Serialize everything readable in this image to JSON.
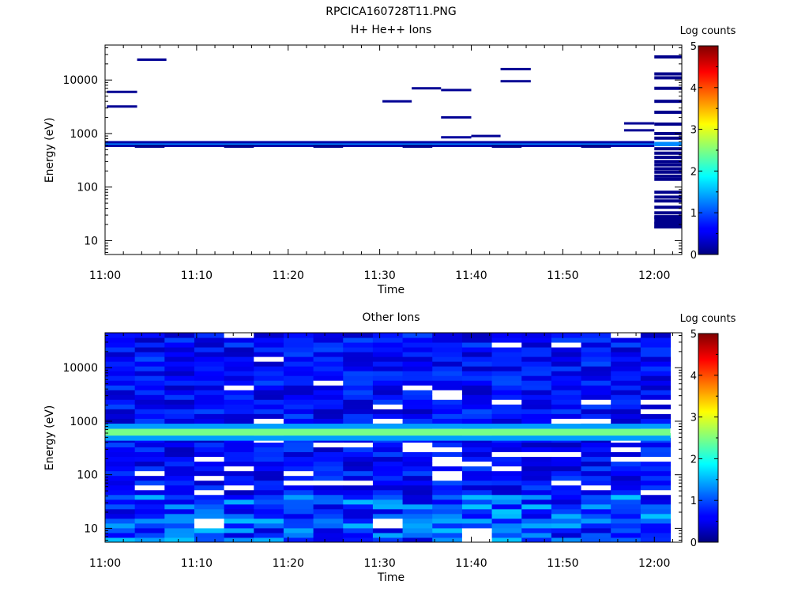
{
  "figure_title": "RPCICA160728T11.PNG",
  "chart_data": [
    {
      "type": "heatmap",
      "title": "H+ He++ Ions",
      "xlabel": "Time",
      "ylabel": "Energy (eV)",
      "x_tick_labels": [
        "11:00",
        "11:10",
        "11:20",
        "11:30",
        "11:40",
        "11:50",
        "12:00"
      ],
      "x_range_minutes": [
        0,
        63
      ],
      "y_scale": "log",
      "y_range": [
        5.5,
        45000
      ],
      "y_tick_labels": [
        "10",
        "100",
        "1000",
        "10000"
      ],
      "colorbar": {
        "label": "Log counts",
        "range": [
          0,
          5
        ],
        "tick_labels": [
          "0",
          "1",
          "2",
          "3",
          "4",
          "5"
        ]
      },
      "background": "#ffffff",
      "band": {
        "energy_range": [
          580,
          700
        ],
        "log_counts": 1.3
      },
      "segments": [
        {
          "t0": 0.2,
          "t1": 3.5,
          "energy": 6000,
          "log_counts": 0.1
        },
        {
          "t0": 0.2,
          "t1": 3.5,
          "energy": 3200,
          "log_counts": 0.1
        },
        {
          "t0": 3.5,
          "t1": 6.7,
          "energy": 24000,
          "log_counts": 0.1
        },
        {
          "t0": 30.3,
          "t1": 33.5,
          "energy": 4000,
          "log_counts": 0.1
        },
        {
          "t0": 33.5,
          "t1": 36.7,
          "energy": 7000,
          "log_counts": 0.1
        },
        {
          "t0": 36.7,
          "t1": 40.0,
          "energy": 6500,
          "log_counts": 0.1
        },
        {
          "t0": 36.7,
          "t1": 40.0,
          "energy": 2000,
          "log_counts": 0.1
        },
        {
          "t0": 36.7,
          "t1": 40.0,
          "energy": 850,
          "log_counts": 0.15
        },
        {
          "t0": 40.0,
          "t1": 43.2,
          "energy": 900,
          "log_counts": 0.1
        },
        {
          "t0": 43.2,
          "t1": 46.5,
          "energy": 16000,
          "log_counts": 0.1
        },
        {
          "t0": 43.2,
          "t1": 46.5,
          "energy": 9500,
          "log_counts": 0.1
        },
        {
          "t0": 56.7,
          "t1": 60.0,
          "energy": 1550,
          "log_counts": 0.1
        },
        {
          "t0": 56.7,
          "t1": 60.0,
          "energy": 1150,
          "log_counts": 0.1
        }
      ],
      "final_column": {
        "t0": 60.0,
        "t1": 63.2,
        "energies": [
          27000,
          13000,
          11000,
          7000,
          4000,
          2500,
          1500,
          1000,
          820,
          520,
          430,
          360,
          300,
          260,
          220,
          190,
          160,
          140,
          80,
          65,
          55,
          42,
          33,
          27,
          21,
          18
        ],
        "log_counts": 0.1
      }
    },
    {
      "type": "heatmap",
      "title": "Other Ions",
      "xlabel": "Time",
      "ylabel": "Energy (eV)",
      "x_tick_labels": [
        "11:00",
        "11:10",
        "11:20",
        "11:30",
        "11:40",
        "11:50",
        "12:00"
      ],
      "x_range_minutes": [
        0,
        63
      ],
      "y_scale": "log",
      "y_range": [
        5.5,
        45000
      ],
      "y_tick_labels": [
        "10",
        "100",
        "1000",
        "10000"
      ],
      "colorbar": {
        "label": "Log counts",
        "range": [
          0,
          5
        ],
        "tick_labels": [
          "0",
          "1",
          "2",
          "3",
          "4",
          "5"
        ]
      },
      "columns": 19,
      "column_width_minutes": 3.25,
      "energy_rows": 44,
      "background_log_counts": [
        0.3,
        1.0
      ],
      "band": {
        "energy_range": [
          540,
          720
        ],
        "log_counts": [
          2.2,
          2.6
        ]
      },
      "low_energy_log_counts": [
        0.4,
        1.6
      ],
      "missing_cells": [
        {
          "column": 3,
          "energy_range": [
            11,
            14.5
          ]
        },
        {
          "column": 9,
          "energy_range": [
            11,
            14.5
          ]
        },
        {
          "column": 12,
          "energy_range": [
            5.5,
            9.5
          ]
        }
      ]
    }
  ]
}
